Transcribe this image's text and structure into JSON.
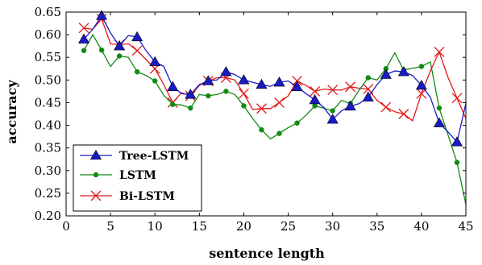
{
  "chart_data": {
    "type": "line",
    "title": "",
    "xlabel": "sentence length",
    "ylabel": "accuracy",
    "xlim": [
      0,
      45
    ],
    "ylim": [
      0.2,
      0.65
    ],
    "xticks": [
      0,
      5,
      10,
      15,
      20,
      25,
      30,
      35,
      40,
      45
    ],
    "xtick_labels": [
      "0",
      "5",
      "10",
      "15",
      "20",
      "25",
      "30",
      "35",
      "40",
      "45"
    ],
    "yticks": [
      0.2,
      0.25,
      0.3,
      0.35,
      0.4,
      0.45,
      0.5,
      0.55,
      0.6,
      0.65
    ],
    "ytick_labels": [
      "0.20",
      "0.25",
      "0.30",
      "0.35",
      "0.40",
      "0.45",
      "0.50",
      "0.55",
      "0.60",
      "0.65"
    ],
    "grid": false,
    "legend_position": "bottom-left",
    "series": [
      {
        "name": "Tree-LSTM",
        "color": "#1a1ac8",
        "marker": "triangle",
        "x": [
          2,
          3,
          4,
          5,
          6,
          7,
          8,
          9,
          10,
          11,
          12,
          13,
          14,
          15,
          16,
          17,
          18,
          19,
          20,
          21,
          22,
          23,
          24,
          25,
          26,
          27,
          28,
          29,
          30,
          31,
          32,
          33,
          34,
          35,
          36,
          37,
          38,
          39,
          40,
          41,
          42,
          43,
          44,
          45
        ],
        "y": [
          0.59,
          0.612,
          0.642,
          0.604,
          0.575,
          0.598,
          0.595,
          0.565,
          0.54,
          0.53,
          0.485,
          0.47,
          0.468,
          0.49,
          0.498,
          0.5,
          0.518,
          0.512,
          0.5,
          0.495,
          0.49,
          0.486,
          0.495,
          0.498,
          0.485,
          0.47,
          0.456,
          0.44,
          0.413,
          0.432,
          0.442,
          0.448,
          0.462,
          0.49,
          0.512,
          0.52,
          0.518,
          0.51,
          0.488,
          0.462,
          0.405,
          0.385,
          0.363,
          0.448
        ]
      },
      {
        "name": "LSTM",
        "color": "#138a13",
        "marker": "circle",
        "x": [
          2,
          3,
          4,
          5,
          6,
          7,
          8,
          9,
          10,
          11,
          12,
          13,
          14,
          15,
          16,
          17,
          18,
          19,
          20,
          21,
          22,
          23,
          24,
          25,
          26,
          27,
          28,
          29,
          30,
          31,
          32,
          33,
          34,
          35,
          36,
          37,
          38,
          39,
          40,
          41,
          42,
          43,
          44,
          45
        ],
        "y": [
          0.565,
          0.6,
          0.566,
          0.53,
          0.553,
          0.55,
          0.518,
          0.51,
          0.498,
          0.466,
          0.446,
          0.445,
          0.438,
          0.468,
          0.465,
          0.468,
          0.475,
          0.468,
          0.443,
          0.415,
          0.39,
          0.37,
          0.382,
          0.395,
          0.405,
          0.422,
          0.443,
          0.438,
          0.432,
          0.455,
          0.448,
          0.478,
          0.505,
          0.5,
          0.525,
          0.56,
          0.522,
          0.526,
          0.53,
          0.54,
          0.438,
          0.378,
          0.318,
          0.225
        ]
      },
      {
        "name": "Bi-LSTM",
        "color": "#e01818",
        "marker": "x",
        "x": [
          2,
          3,
          4,
          5,
          6,
          7,
          8,
          9,
          10,
          11,
          12,
          13,
          14,
          15,
          16,
          17,
          18,
          19,
          20,
          21,
          22,
          23,
          24,
          25,
          26,
          27,
          28,
          29,
          30,
          31,
          32,
          33,
          34,
          35,
          36,
          37,
          38,
          39,
          40,
          41,
          42,
          43,
          44,
          45
        ],
        "y": [
          0.615,
          0.612,
          0.635,
          0.58,
          0.578,
          0.58,
          0.565,
          0.545,
          0.525,
          0.49,
          0.45,
          0.472,
          0.465,
          0.488,
          0.498,
          0.505,
          0.505,
          0.5,
          0.47,
          0.435,
          0.437,
          0.437,
          0.45,
          0.465,
          0.498,
          0.488,
          0.475,
          0.48,
          0.478,
          0.478,
          0.485,
          0.482,
          0.48,
          0.455,
          0.44,
          0.43,
          0.425,
          0.41,
          0.47,
          0.52,
          0.562,
          0.505,
          0.46,
          0.415
        ]
      }
    ]
  }
}
